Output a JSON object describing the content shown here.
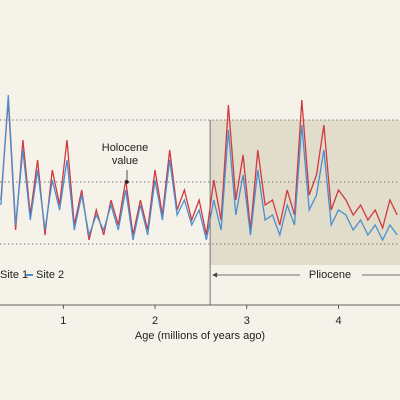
{
  "chart_data": {
    "type": "line",
    "x_label": "Age (millions of years ago)",
    "annotation_lines": [
      "Holocene",
      "value"
    ],
    "period_label": "Pliocene",
    "period_start": 2.6,
    "reference_lines": [
      1.6,
      7.8,
      14
    ],
    "xlim": [
      0.31,
      4.67
    ],
    "ylim": [
      0,
      20
    ],
    "xticks": [
      1,
      2,
      3,
      4
    ],
    "x": [
      0.32,
      0.4,
      0.48,
      0.56,
      0.64,
      0.72,
      0.8,
      0.88,
      0.96,
      1.04,
      1.12,
      1.2,
      1.28,
      1.36,
      1.44,
      1.52,
      1.6,
      1.68,
      1.76,
      1.84,
      1.92,
      2.0,
      2.08,
      2.16,
      2.24,
      2.32,
      2.4,
      2.48,
      2.56,
      2.64,
      2.72,
      2.8,
      2.88,
      2.96,
      3.04,
      3.12,
      3.2,
      3.28,
      3.36,
      3.44,
      3.52,
      3.6,
      3.68,
      3.76,
      3.84,
      3.92,
      4.0,
      4.08,
      4.16,
      4.24,
      4.32,
      4.4,
      4.48,
      4.56,
      4.64
    ],
    "series": [
      {
        "name": "Site 1",
        "color": "#d0393f",
        "values": [
          6,
          16,
          3,
          12,
          4.5,
          10,
          2.5,
          9,
          5.5,
          12,
          3.5,
          7,
          2,
          5,
          2.5,
          6,
          3.5,
          8,
          2.5,
          6,
          3,
          9,
          4.5,
          11,
          5,
          7,
          4,
          6,
          2.5,
          8,
          4,
          15.5,
          6,
          10.5,
          3,
          11,
          5.5,
          6,
          3.5,
          7,
          4.5,
          16,
          6.5,
          8.5,
          13.5,
          5,
          7,
          6,
          4.5,
          5.5,
          4,
          5,
          3.2,
          6,
          4.5
        ]
      },
      {
        "name": "Site 2",
        "color": "#4a90d0",
        "values": [
          5.5,
          16.5,
          3.5,
          11,
          4,
          9,
          3,
          8,
          5,
          10,
          3,
          6.5,
          2.5,
          4.5,
          3,
          5.5,
          3,
          7,
          2,
          5.5,
          2.5,
          8,
          4,
          10,
          4.5,
          6,
          3.5,
          5,
          2,
          6,
          3,
          13,
          4.5,
          8.5,
          2.5,
          9,
          4,
          4.5,
          2.5,
          5.5,
          3.5,
          13.5,
          5,
          6.5,
          11,
          3.5,
          5,
          4.5,
          3,
          4,
          2.5,
          3.5,
          2,
          3.5,
          2.5
        ]
      }
    ]
  }
}
